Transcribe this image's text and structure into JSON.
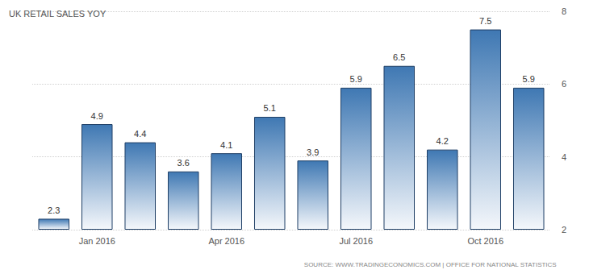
{
  "chart_data": {
    "type": "bar",
    "title": "UK RETAIL SALES YOY",
    "source": "SOURCE: WWW.TRADINGECONOMICS.COM | OFFICE FOR NATIONAL STATISTICS",
    "categories": [
      null,
      "Jan 2016",
      null,
      null,
      "Apr 2016",
      null,
      null,
      "Jul 2016",
      null,
      null,
      "Oct 2016",
      null
    ],
    "values": [
      2.3,
      4.9,
      4.4,
      3.6,
      4.1,
      5.1,
      3.9,
      5.9,
      6.5,
      4.2,
      7.5,
      5.9
    ],
    "color": "#3f78b3",
    "ylim": [
      2,
      8
    ],
    "yticks": [
      2,
      4,
      6,
      8
    ],
    "grid": true,
    "data_labels": true
  }
}
